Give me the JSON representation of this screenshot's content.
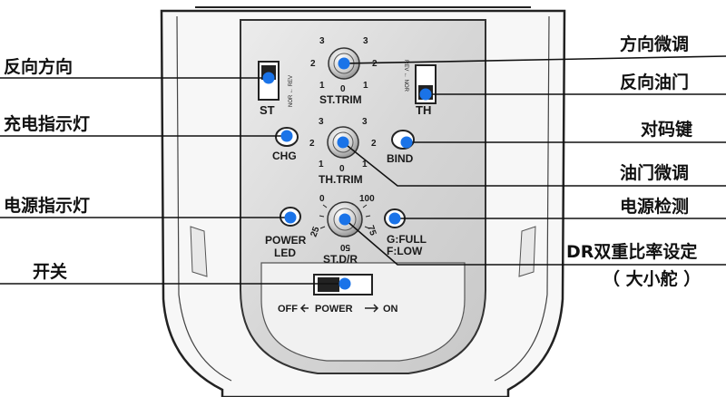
{
  "labels_left": {
    "reverse_direction": "反向方向",
    "charge_indicator": "充电指示灯",
    "power_indicator": "电源指示灯",
    "switch": "开关"
  },
  "labels_right": {
    "steering_trim": "方向微调",
    "reverse_throttle": "反向油门",
    "bind_key": "对码键",
    "throttle_trim": "油门微调",
    "power_check": "电源检测",
    "dr_setting_line1": "DR双重比率设定",
    "dr_setting_line2": "（ 大小舵 ）"
  },
  "panel": {
    "st_trim": "ST.TRIM",
    "th_trim": "TH.TRIM",
    "st_dr": "ST.D/R",
    "st": "ST",
    "th": "TH",
    "nor_rev_left": "NOR ← REV",
    "rev_nor_right": "REV ← NOR",
    "chg": "CHG",
    "bind": "BIND",
    "power_led_1": "POWER",
    "power_led_2": "LED",
    "g_full": "G:FULL",
    "f_low": "F:LOW",
    "off": "OFF",
    "power": "POWER",
    "on": "ON",
    "trim_ticks": [
      "3",
      "3",
      "2",
      "2",
      "1",
      "1",
      "0"
    ],
    "dr_ticks": [
      "0",
      "100",
      "25",
      "75",
      "50"
    ]
  },
  "colors": {
    "dot": "#1a73e8",
    "panel": "#dcdcdc",
    "line": "#111111"
  }
}
